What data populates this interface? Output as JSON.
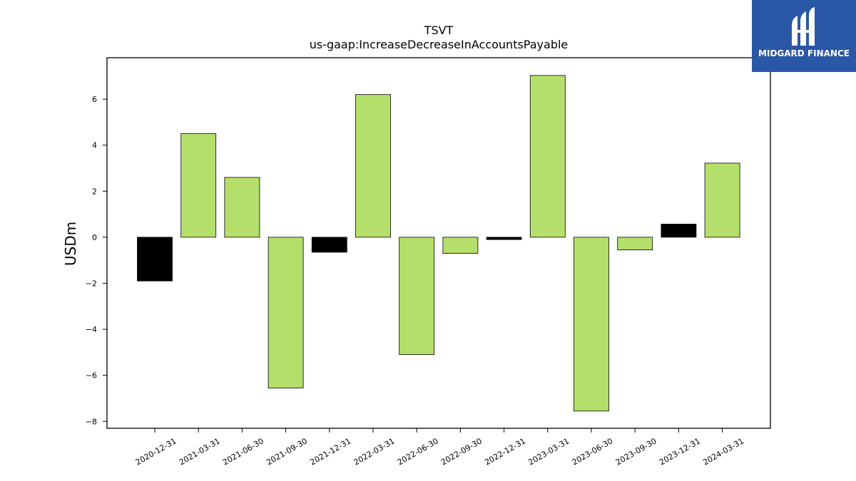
{
  "chart_data": {
    "type": "bar",
    "title": "TSVT",
    "subtitle": "us-gaap:IncreaseDecreaseInAccountsPayable",
    "ylabel": "USDm",
    "xlabel": "",
    "categories": [
      "2020-12-31",
      "2021-03-31",
      "2021-06-30",
      "2021-09-30",
      "2021-12-31",
      "2022-03-31",
      "2022-06-30",
      "2022-09-30",
      "2022-12-31",
      "2023-03-31",
      "2023-06-30",
      "2023-09-30",
      "2023-12-31",
      "2024-03-31"
    ],
    "values": [
      -1.9,
      4.5,
      2.6,
      -6.55,
      -0.65,
      6.2,
      -5.1,
      -0.7,
      -0.1,
      7.03,
      -7.55,
      -0.55,
      0.57,
      3.22
    ],
    "bar_colors": [
      "#000000",
      "#b5df6b",
      "#b5df6b",
      "#b5df6b",
      "#000000",
      "#b5df6b",
      "#b5df6b",
      "#b5df6b",
      "#000000",
      "#b5df6b",
      "#b5df6b",
      "#b5df6b",
      "#000000",
      "#b5df6b"
    ],
    "yticks": [
      -8,
      -6,
      -4,
      -2,
      0,
      2,
      4,
      6
    ],
    "ylim": [
      -8.3,
      7.8
    ],
    "grid": false,
    "legend": "none"
  },
  "logo": {
    "text": "MIDGARD FINANCE",
    "icon": "midgard-logo-icon",
    "background": "#2a57a6"
  }
}
